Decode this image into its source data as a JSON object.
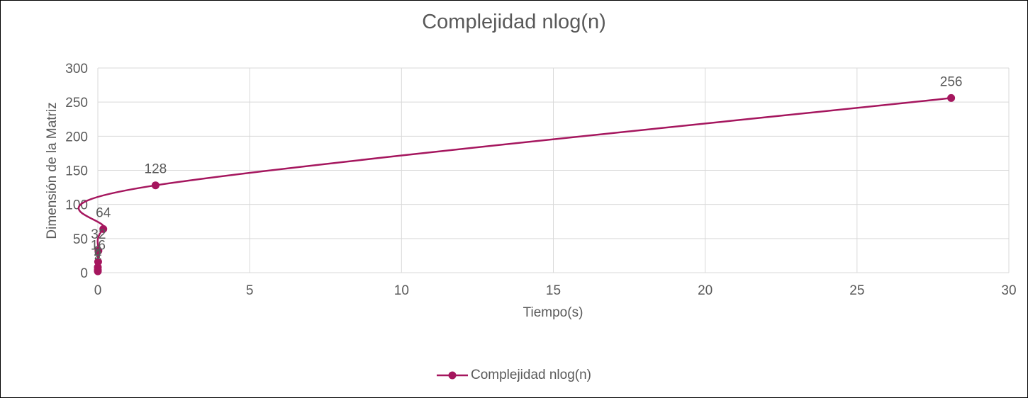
{
  "chart_data": {
    "type": "scatter",
    "title": "Complejidad nlog(n)",
    "xlabel": "Tiempo(s)",
    "ylabel": "Dimensión de la Matriz",
    "xlim": [
      0,
      30
    ],
    "ylim": [
      0,
      300
    ],
    "x_ticks": [
      0,
      5,
      10,
      15,
      20,
      25,
      30
    ],
    "y_ticks": [
      0,
      50,
      100,
      150,
      200,
      250,
      300
    ],
    "grid": true,
    "smooth_line": true,
    "legend_position": "bottom",
    "series": [
      {
        "name": "Complejidad nlog(n)",
        "color": "#A5165E",
        "points": [
          {
            "x": 0.0,
            "y": 2,
            "label": "2"
          },
          {
            "x": 0.0,
            "y": 4,
            "label": "4"
          },
          {
            "x": 0.0,
            "y": 8,
            "label": "8"
          },
          {
            "x": 0.01,
            "y": 16,
            "label": "16"
          },
          {
            "x": 0.02,
            "y": 32,
            "label": "32"
          },
          {
            "x": 0.18,
            "y": 64,
            "label": "64"
          },
          {
            "x": 1.9,
            "y": 128,
            "label": "128"
          },
          {
            "x": 28.1,
            "y": 256,
            "label": "256"
          }
        ]
      }
    ]
  }
}
